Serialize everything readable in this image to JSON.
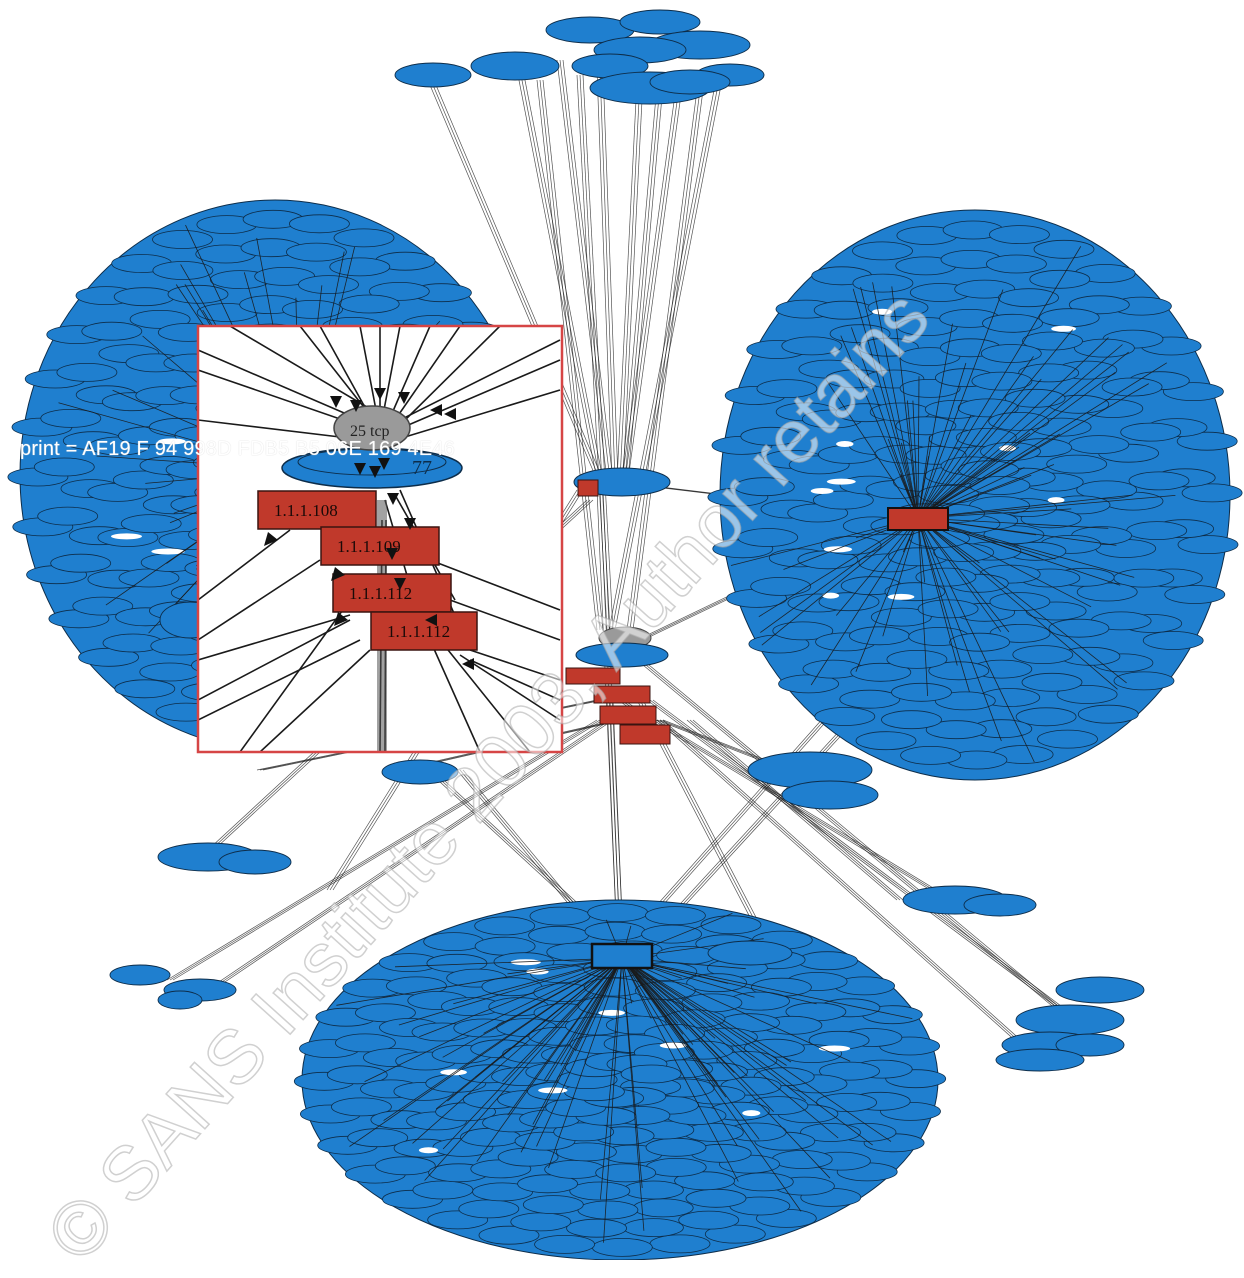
{
  "colors": {
    "node_fill": "#1f7fcf",
    "node_stroke": "#0d2d4a",
    "alert_fill": "#c0392b",
    "hub_fill": "#9a9a9a",
    "edge": "#1a1a1a",
    "inset_border": "#d64545"
  },
  "inset": {
    "hub_label": "25 tcp",
    "blue_label": "77",
    "alerts": [
      "1.1.1.108",
      "1.1.1.109",
      "1.1.1.112",
      "1.1.1.112"
    ]
  },
  "overlay": {
    "fingerprint": "print = AF19 F   94 998D FDB5  B5 06E   169 4E46",
    "watermark": "© SANS Institute 2003, Author retains"
  },
  "icons": {
    "watermark": "copyright-watermark"
  }
}
